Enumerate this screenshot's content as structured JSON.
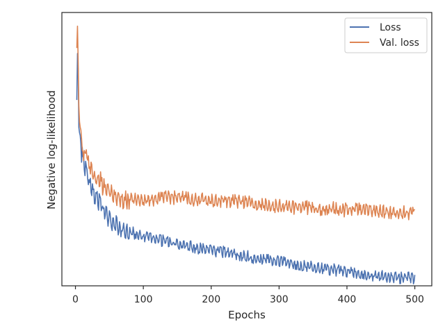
{
  "chart_data": {
    "type": "line",
    "xlabel": "Epochs",
    "ylabel": "Negative log-likelihood",
    "xlim": [
      -20,
      525
    ],
    "ylim": [
      0,
      1
    ],
    "xticks": [
      0,
      100,
      200,
      300,
      400,
      500
    ],
    "yticks_visible": false,
    "grid": false,
    "legend_position": "top-right",
    "note": "y-axis has no tick labels; values are normalized to the plotted range (0 = bottom axis, 1 = top axis)",
    "series": [
      {
        "name": "Loss",
        "color": "#4c72b0",
        "x": [
          2,
          3,
          4,
          5,
          6,
          7,
          8,
          10,
          12,
          14,
          16,
          18,
          20,
          22,
          25,
          28,
          30,
          33,
          36,
          40,
          45,
          50,
          55,
          60,
          65,
          70,
          80,
          90,
          100,
          110,
          120,
          130,
          140,
          150,
          160,
          170,
          180,
          190,
          200,
          220,
          240,
          260,
          280,
          300,
          320,
          340,
          360,
          380,
          400,
          420,
          440,
          460,
          480,
          500
        ],
        "y": [
          0.68,
          0.85,
          0.79,
          0.58,
          0.56,
          0.55,
          0.52,
          0.49,
          0.46,
          0.44,
          0.45,
          0.43,
          0.4,
          0.39,
          0.37,
          0.35,
          0.33,
          0.33,
          0.32,
          0.3,
          0.28,
          0.26,
          0.25,
          0.24,
          0.23,
          0.22,
          0.21,
          0.2,
          0.19,
          0.185,
          0.18,
          0.175,
          0.17,
          0.165,
          0.16,
          0.155,
          0.15,
          0.145,
          0.14,
          0.135,
          0.125,
          0.115,
          0.11,
          0.1,
          0.09,
          0.085,
          0.075,
          0.07,
          0.06,
          0.055,
          0.05,
          0.045,
          0.04,
          0.04
        ]
      },
      {
        "name": "Val. loss",
        "color": "#dd8452",
        "x": [
          2,
          3,
          4,
          5,
          6,
          7,
          8,
          10,
          12,
          14,
          16,
          18,
          20,
          22,
          25,
          28,
          30,
          33,
          36,
          40,
          45,
          50,
          55,
          60,
          65,
          70,
          80,
          90,
          100,
          110,
          120,
          130,
          140,
          150,
          160,
          170,
          180,
          190,
          200,
          220,
          240,
          260,
          280,
          300,
          320,
          340,
          360,
          380,
          400,
          420,
          440,
          460,
          480,
          500
        ],
        "y": [
          0.87,
          0.95,
          0.82,
          0.66,
          0.6,
          0.58,
          0.57,
          0.55,
          0.52,
          0.5,
          0.53,
          0.48,
          0.47,
          0.45,
          0.43,
          0.42,
          0.41,
          0.41,
          0.4,
          0.39,
          0.37,
          0.36,
          0.35,
          0.34,
          0.34,
          0.33,
          0.33,
          0.33,
          0.33,
          0.33,
          0.33,
          0.335,
          0.335,
          0.335,
          0.335,
          0.33,
          0.33,
          0.33,
          0.325,
          0.325,
          0.32,
          0.315,
          0.31,
          0.305,
          0.3,
          0.3,
          0.295,
          0.295,
          0.29,
          0.29,
          0.285,
          0.285,
          0.28,
          0.28
        ]
      }
    ]
  }
}
